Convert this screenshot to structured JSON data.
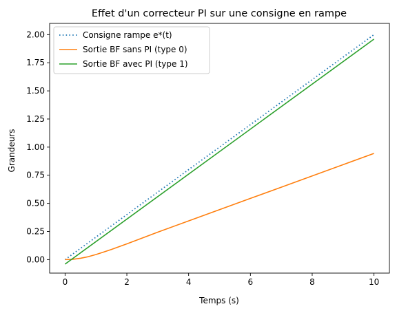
{
  "chart_data": {
    "type": "line",
    "title": "Effet d'un correcteur PI sur une consigne en rampe",
    "xlabel": "Temps (s)",
    "ylabel": "Grandeurs",
    "xlim": [
      -0.5,
      10.5
    ],
    "ylim": [
      -0.12,
      2.1
    ],
    "xticks": [
      0,
      2,
      4,
      6,
      8,
      10
    ],
    "xtick_labels": [
      "0",
      "2",
      "4",
      "6",
      "8",
      "10"
    ],
    "yticks": [
      0.0,
      0.25,
      0.5,
      0.75,
      1.0,
      1.25,
      1.5,
      1.75,
      2.0
    ],
    "ytick_labels": [
      "0.00",
      "0.25",
      "0.50",
      "0.75",
      "1.00",
      "1.25",
      "1.50",
      "1.75",
      "2.00"
    ],
    "grid": false,
    "legend_position": "top-left",
    "series": [
      {
        "name": "Consigne rampe e*(t)",
        "color": "#1f77b4",
        "style": "dotted",
        "x": [
          0,
          10
        ],
        "y": [
          0,
          2.0
        ]
      },
      {
        "name": "Sortie BF sans PI (type 0)",
        "color": "#ff7f0e",
        "style": "solid",
        "x": [
          0,
          0.25,
          0.5,
          0.75,
          1.0,
          1.25,
          1.5,
          2.0,
          2.5,
          3.0,
          4.0,
          5.0,
          6.0,
          7.0,
          8.0,
          9.0,
          10.0
        ],
        "y": [
          0.0,
          0.003,
          0.012,
          0.026,
          0.045,
          0.067,
          0.09,
          0.14,
          0.192,
          0.244,
          0.344,
          0.444,
          0.544,
          0.644,
          0.744,
          0.844,
          0.944
        ]
      },
      {
        "name": "Sortie BF avec PI (type 1)",
        "color": "#2ca02c",
        "style": "solid",
        "x": [
          0,
          10
        ],
        "y": [
          -0.04,
          1.96
        ]
      }
    ]
  }
}
